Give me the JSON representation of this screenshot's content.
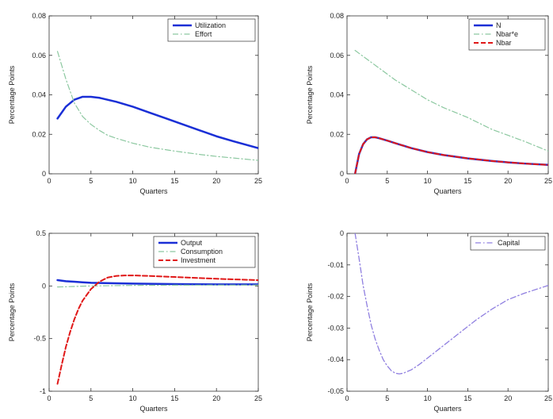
{
  "chart_data": [
    {
      "type": "line",
      "title": "",
      "xlabel": "Quarters",
      "ylabel": "Percentage Points",
      "xlim": [
        0,
        25
      ],
      "ylim": [
        0,
        0.08
      ],
      "xticks": [
        "0",
        "5",
        "10",
        "15",
        "20",
        "25"
      ],
      "yticks": [
        "0",
        "0.02",
        "0.04",
        "0.06",
        "0.08"
      ],
      "legend_position": "top-right",
      "series": [
        {
          "name": "Utilization",
          "color": "#1a2fd6",
          "style": "solid",
          "width": 2.5,
          "x": [
            1,
            2,
            3,
            4,
            5,
            6,
            8,
            10,
            12,
            14,
            16,
            18,
            20,
            22,
            25
          ],
          "y": [
            0.028,
            0.034,
            0.0375,
            0.039,
            0.039,
            0.0385,
            0.0365,
            0.034,
            0.031,
            0.028,
            0.025,
            0.022,
            0.019,
            0.0165,
            0.013
          ]
        },
        {
          "name": "Effort",
          "color": "#8cc8a0",
          "style": "dashdot",
          "width": 1.2,
          "x": [
            1,
            2,
            3,
            4,
            5,
            6,
            7,
            8,
            10,
            12,
            15,
            18,
            20,
            22,
            25
          ],
          "y": [
            0.062,
            0.048,
            0.036,
            0.029,
            0.025,
            0.022,
            0.0195,
            0.018,
            0.0155,
            0.0135,
            0.0115,
            0.0098,
            0.0088,
            0.008,
            0.0068
          ]
        }
      ]
    },
    {
      "type": "line",
      "title": "",
      "xlabel": "Quarters",
      "ylabel": "Percentage Points",
      "xlim": [
        0,
        25
      ],
      "ylim": [
        0,
        0.08
      ],
      "xticks": [
        "0",
        "5",
        "10",
        "15",
        "20",
        "25"
      ],
      "yticks": [
        "0",
        "0.02",
        "0.04",
        "0.06",
        "0.08"
      ],
      "legend_position": "top-right",
      "series": [
        {
          "name": "N",
          "color": "#1a2fd6",
          "style": "solid",
          "width": 2.5,
          "x": [
            1,
            1.5,
            2,
            2.5,
            3,
            3.5,
            4,
            5,
            6,
            8,
            10,
            12,
            15,
            18,
            20,
            22,
            25
          ],
          "y": [
            0,
            0.01,
            0.015,
            0.0175,
            0.0185,
            0.0185,
            0.018,
            0.0168,
            0.0155,
            0.013,
            0.011,
            0.0095,
            0.0078,
            0.0065,
            0.0058,
            0.0052,
            0.0045
          ]
        },
        {
          "name": "Nbar*e",
          "color": "#8cc8a0",
          "style": "dashdot",
          "width": 1.2,
          "x": [
            1,
            2,
            3,
            4,
            5,
            6,
            8,
            10,
            12,
            15,
            18,
            20,
            22,
            25
          ],
          "y": [
            0.0625,
            0.0595,
            0.0565,
            0.0535,
            0.0505,
            0.0475,
            0.0425,
            0.0375,
            0.0335,
            0.0285,
            0.0225,
            0.0195,
            0.0165,
            0.0115
          ]
        },
        {
          "name": "Nbar",
          "color": "#e01818",
          "style": "dashed",
          "width": 2,
          "x": [
            1,
            1.5,
            2,
            2.5,
            3,
            3.5,
            4,
            5,
            6,
            8,
            10,
            12,
            15,
            18,
            20,
            22,
            25
          ],
          "y": [
            0,
            0.01,
            0.015,
            0.0175,
            0.0185,
            0.0185,
            0.018,
            0.0168,
            0.0155,
            0.013,
            0.011,
            0.0095,
            0.0078,
            0.0065,
            0.0058,
            0.0052,
            0.0045
          ]
        }
      ]
    },
    {
      "type": "line",
      "title": "",
      "xlabel": "Quarters",
      "ylabel": "Percentage Points",
      "xlim": [
        0,
        25
      ],
      "ylim": [
        -1,
        0.5
      ],
      "xticks": [
        "0",
        "5",
        "10",
        "15",
        "20",
        "25"
      ],
      "yticks": [
        "-1",
        "-0.5",
        "0",
        "0.5"
      ],
      "legend_position": "top-right",
      "series": [
        {
          "name": "Output",
          "color": "#1a2fd6",
          "style": "solid",
          "width": 2.5,
          "x": [
            1,
            2,
            3,
            4,
            5,
            6,
            8,
            10,
            12,
            15,
            18,
            20,
            22,
            25
          ],
          "y": [
            0.055,
            0.045,
            0.04,
            0.035,
            0.03,
            0.028,
            0.025,
            0.022,
            0.02,
            0.018,
            0.016,
            0.015,
            0.015,
            0.015
          ]
        },
        {
          "name": "Consumption",
          "color": "#8cc8a0",
          "style": "dashdot",
          "width": 1.2,
          "x": [
            1,
            3,
            5,
            8,
            10,
            12,
            15,
            20,
            25
          ],
          "y": [
            -0.01,
            -0.005,
            0,
            0.003,
            0.005,
            0.006,
            0.007,
            0.008,
            0.008
          ]
        },
        {
          "name": "Investment",
          "color": "#e01818",
          "style": "dashed",
          "width": 2,
          "x": [
            1,
            1.5,
            2,
            2.5,
            3,
            3.5,
            4,
            5,
            6,
            7,
            8,
            9,
            10,
            12,
            15,
            20,
            25
          ],
          "y": [
            -0.93,
            -0.75,
            -0.58,
            -0.44,
            -0.32,
            -0.22,
            -0.14,
            -0.03,
            0.04,
            0.08,
            0.095,
            0.1,
            0.1,
            0.095,
            0.085,
            0.068,
            0.055
          ]
        }
      ]
    },
    {
      "type": "line",
      "title": "",
      "xlabel": "Quarters",
      "ylabel": "Percentage Points",
      "xlim": [
        0,
        25
      ],
      "ylim": [
        -0.05,
        0
      ],
      "xticks": [
        "0",
        "5",
        "10",
        "15",
        "20",
        "25"
      ],
      "yticks": [
        "-0.05",
        "-0.04",
        "-0.03",
        "-0.02",
        "-0.01",
        "0"
      ],
      "legend_position": "top-right",
      "series": [
        {
          "name": "Capital",
          "color": "#8f7fe0",
          "style": "dashdot",
          "width": 1.3,
          "x": [
            1,
            1.5,
            2,
            2.5,
            3,
            3.5,
            4,
            4.5,
            5,
            5.5,
            6,
            6.5,
            7,
            8,
            9,
            10,
            12,
            14,
            16,
            18,
            20,
            22,
            25
          ],
          "y": [
            0,
            -0.008,
            -0.0165,
            -0.023,
            -0.029,
            -0.0335,
            -0.037,
            -0.04,
            -0.042,
            -0.0435,
            -0.0443,
            -0.0445,
            -0.0443,
            -0.0432,
            -0.0415,
            -0.0395,
            -0.0355,
            -0.0315,
            -0.0275,
            -0.024,
            -0.021,
            -0.019,
            -0.0165
          ]
        }
      ]
    }
  ]
}
